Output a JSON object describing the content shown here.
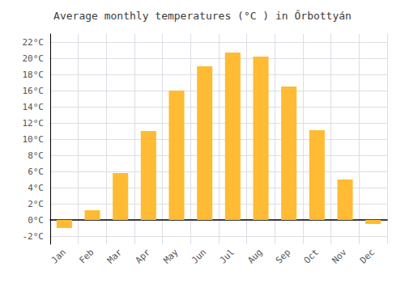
{
  "chart_data": {
    "type": "bar",
    "title": "Average monthly temperatures (°C ) in Őrbottyán",
    "categories": [
      "Jan",
      "Feb",
      "Mar",
      "Apr",
      "May",
      "Jun",
      "Jul",
      "Aug",
      "Sep",
      "Oct",
      "Nov",
      "Dec"
    ],
    "values": [
      -1.0,
      1.2,
      5.8,
      11.0,
      16.0,
      19.0,
      20.7,
      20.2,
      16.5,
      11.1,
      5.0,
      -0.5
    ],
    "color": "#FFBB33",
    "ylim": [
      -3,
      23
    ],
    "yticks": [
      {
        "value": -2,
        "label": "-2°C"
      },
      {
        "value": 0,
        "label": "0°C"
      },
      {
        "value": 2,
        "label": "2°C"
      },
      {
        "value": 4,
        "label": "4°C"
      },
      {
        "value": 6,
        "label": "6°C"
      },
      {
        "value": 8,
        "label": "8°C"
      },
      {
        "value": 10,
        "label": "10°C"
      },
      {
        "value": 12,
        "label": "12°C"
      },
      {
        "value": 14,
        "label": "14°C"
      },
      {
        "value": 16,
        "label": "16°C"
      },
      {
        "value": 18,
        "label": "18°C"
      },
      {
        "value": 20,
        "label": "20°C"
      },
      {
        "value": 22,
        "label": "22°C"
      }
    ],
    "grid": true
  }
}
